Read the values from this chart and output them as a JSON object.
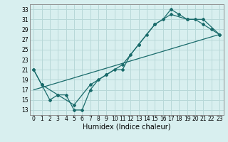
{
  "title": "",
  "xlabel": "Humidex (Indice chaleur)",
  "bg_color": "#d8efef",
  "grid_color": "#b8d8d8",
  "line_color": "#1a6b6b",
  "xlim": [
    -0.5,
    23.5
  ],
  "ylim": [
    12,
    34
  ],
  "xticks": [
    0,
    1,
    2,
    3,
    4,
    5,
    6,
    7,
    8,
    9,
    10,
    11,
    12,
    13,
    14,
    15,
    16,
    17,
    18,
    19,
    20,
    21,
    22,
    23
  ],
  "yticks": [
    13,
    15,
    17,
    19,
    21,
    23,
    25,
    27,
    29,
    31,
    33
  ],
  "line1_x": [
    0,
    1,
    2,
    3,
    4,
    5,
    6,
    7,
    8,
    9,
    10,
    11,
    12,
    13,
    14,
    15,
    16,
    17,
    18,
    19,
    20,
    21,
    22,
    23
  ],
  "line1_y": [
    21,
    18,
    15,
    16,
    16,
    13,
    13,
    17,
    19,
    20,
    21,
    21,
    24,
    26,
    28,
    30,
    31,
    33,
    32,
    31,
    31,
    30,
    29,
    28
  ],
  "line2_x": [
    0,
    1,
    3,
    5,
    7,
    9,
    11,
    13,
    15,
    17,
    19,
    21,
    23
  ],
  "line2_y": [
    21,
    18,
    16,
    14,
    18,
    20,
    22,
    26,
    30,
    32,
    31,
    31,
    28
  ],
  "line3_x": [
    0,
    23
  ],
  "line3_y": [
    17,
    28
  ],
  "tick_fontsize": 5.5,
  "xlabel_fontsize": 7
}
